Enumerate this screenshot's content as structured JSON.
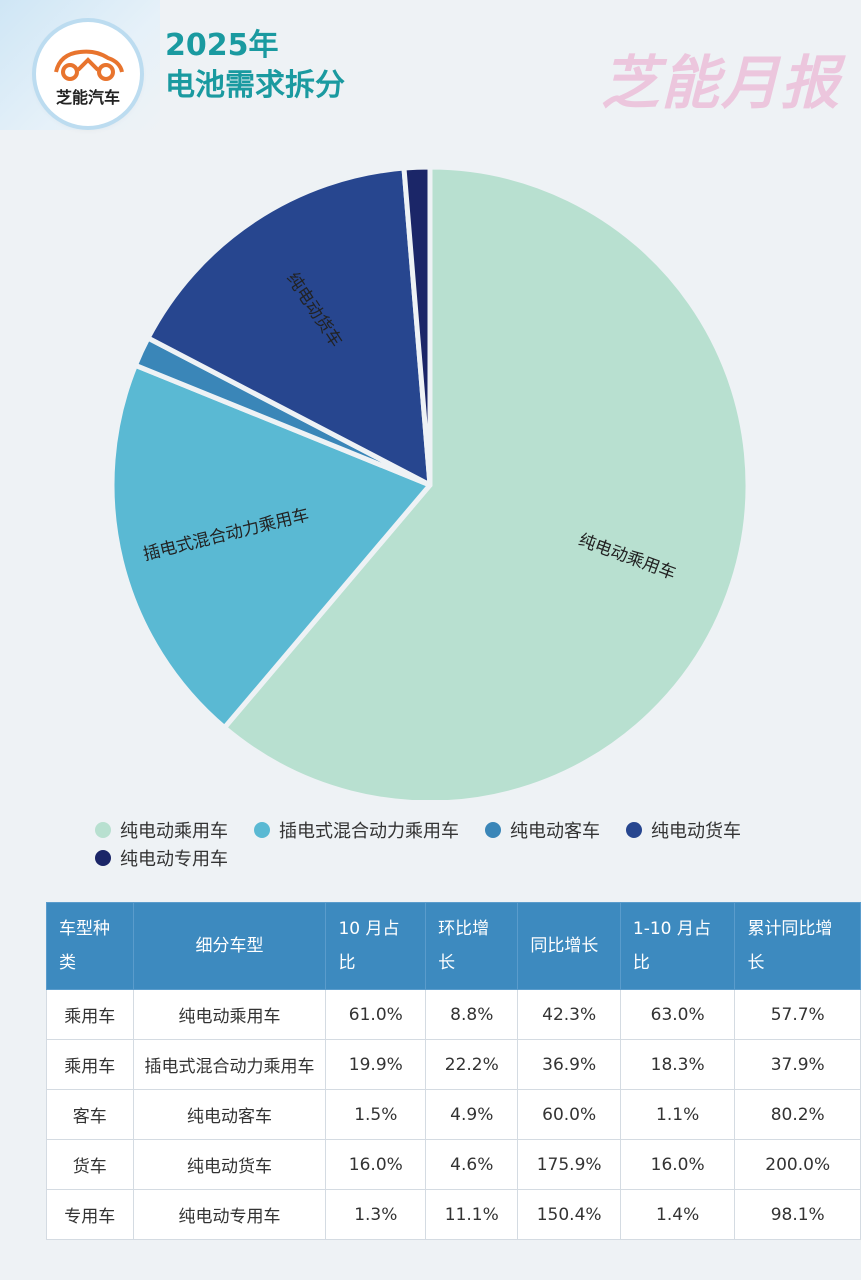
{
  "header": {
    "logo_text": "芝能汽车",
    "title_line1": "2025年",
    "title_line2": "电池需求拆分",
    "brand": "芝能月报"
  },
  "colors": {
    "series": [
      "#b8e0d0",
      "#5ab9d3",
      "#3a86b8",
      "#27468f",
      "#1b2668"
    ]
  },
  "chart_data": {
    "type": "pie",
    "title": "",
    "labels": [
      "纯电动乘用车",
      "插电式混合动力乘用车",
      "纯电动客车",
      "纯电动货车",
      "纯电动专用车"
    ],
    "values": [
      61.0,
      19.9,
      1.5,
      16.0,
      1.3
    ],
    "slice_labels": [
      "纯电动乘用车",
      "插电式混合动力乘用车",
      "",
      "纯电动货车",
      ""
    ],
    "legend_position": "bottom"
  },
  "legend": [
    "纯电动乘用车",
    "插电式混合动力乘用车",
    "纯电动客车",
    "纯电动货车",
    "纯电动专用车"
  ],
  "table": {
    "headers": [
      "车型种类",
      "细分车型",
      "10 月占比",
      "环比增长",
      "同比增长",
      "1-10 月占比",
      "累计同比增长"
    ],
    "rows": [
      [
        "乘用车",
        "纯电动乘用车",
        "61.0%",
        "8.8%",
        "42.3%",
        "63.0%",
        "57.7%"
      ],
      [
        "乘用车",
        "插电式混合动力乘用车",
        "19.9%",
        "22.2%",
        "36.9%",
        "18.3%",
        "37.9%"
      ],
      [
        "客车",
        "纯电动客车",
        "1.5%",
        "4.9%",
        "60.0%",
        "1.1%",
        "80.2%"
      ],
      [
        "货车",
        "纯电动货车",
        "16.0%",
        "4.6%",
        "175.9%",
        "16.0%",
        "200.0%"
      ],
      [
        "专用车",
        "纯电动专用车",
        "1.3%",
        "11.1%",
        "150.4%",
        "1.4%",
        "98.1%"
      ]
    ]
  }
}
